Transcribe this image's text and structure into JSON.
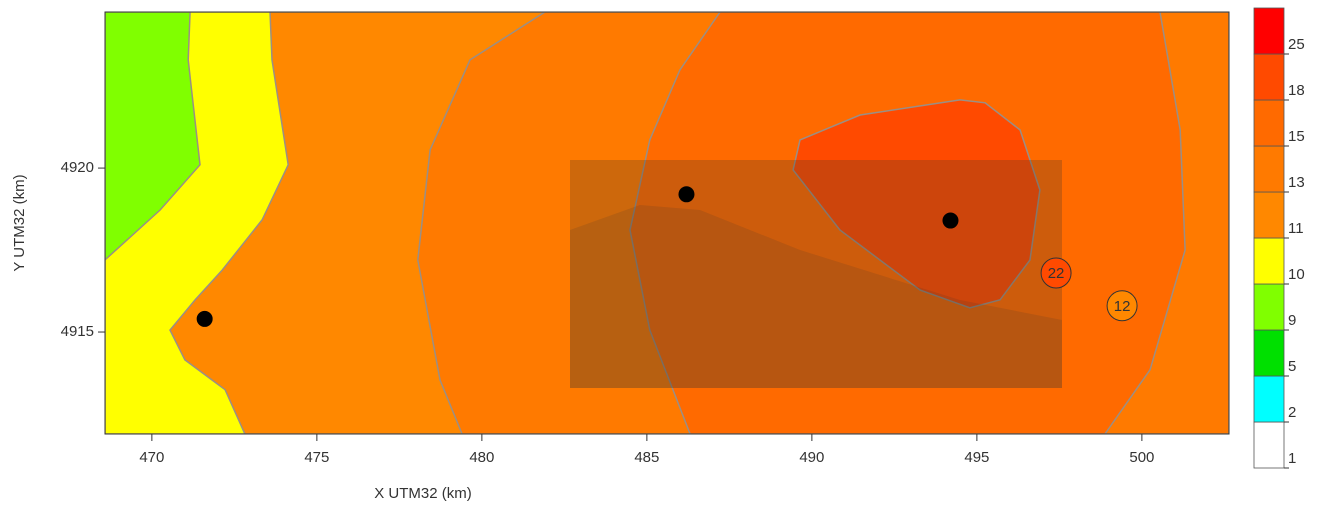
{
  "chart_data": {
    "type": "contour",
    "x_label": "X UTM32 (km)",
    "y_label": "Y UTM32 (km)",
    "xlim": [
      468.58,
      502.64
    ],
    "ylim": [
      4911.89,
      4924.76
    ],
    "xticks": [
      470,
      475,
      480,
      485,
      490,
      495,
      500
    ],
    "yticks": [
      4915,
      4920
    ],
    "colorbar": {
      "levels": [
        1,
        2,
        5,
        9,
        10,
        11,
        13,
        15,
        18,
        25
      ],
      "colors": [
        "#ffffff",
        "#00ffff",
        "#00e000",
        "#80ff00",
        "#ffff00",
        "#ff8800",
        "#ff7a00",
        "#ff6a00",
        "#ff4a00",
        "#ff0000"
      ]
    },
    "regions": [
      {
        "level": 11,
        "points": [
          [
            468.58,
            4924.76
          ],
          [
            502.64,
            4924.76
          ],
          [
            502.64,
            4911.89
          ],
          [
            468.58,
            4911.89
          ]
        ]
      },
      {
        "level": 13,
        "points": [
          [
            481.91,
            4924.76
          ],
          [
            479.64,
            4923.3
          ],
          [
            478.43,
            4920.55
          ],
          [
            478.06,
            4917.2
          ],
          [
            478.73,
            4913.54
          ],
          [
            479.4,
            4911.89
          ],
          [
            502.64,
            4911.89
          ],
          [
            502.64,
            4924.76
          ]
        ]
      },
      {
        "level": 15,
        "points": [
          [
            487.22,
            4924.76
          ],
          [
            486.0,
            4922.99
          ],
          [
            485.09,
            4920.86
          ],
          [
            484.49,
            4918.11
          ],
          [
            485.09,
            4915.06
          ],
          [
            486.31,
            4911.89
          ],
          [
            498.88,
            4911.89
          ],
          [
            500.25,
            4913.85
          ],
          [
            501.31,
            4917.5
          ],
          [
            501.16,
            4921.16
          ],
          [
            500.55,
            4924.76
          ]
        ]
      },
      {
        "level": 18,
        "points": [
          [
            489.64,
            4920.86
          ],
          [
            491.46,
            4921.62
          ],
          [
            494.49,
            4922.08
          ],
          [
            495.25,
            4921.99
          ],
          [
            496.31,
            4921.16
          ],
          [
            496.91,
            4919.33
          ],
          [
            496.61,
            4917.2
          ],
          [
            495.7,
            4915.98
          ],
          [
            494.79,
            4915.74
          ],
          [
            493.28,
            4916.28
          ],
          [
            490.85,
            4918.11
          ],
          [
            489.43,
            4919.94
          ]
        ]
      },
      {
        "level": 10,
        "points": [
          [
            471.16,
            4924.76
          ],
          [
            473.58,
            4924.76
          ],
          [
            473.64,
            4923.3
          ],
          [
            474.13,
            4920.1
          ],
          [
            473.34,
            4918.42
          ],
          [
            472.13,
            4916.89
          ],
          [
            471.31,
            4915.98
          ],
          [
            470.55,
            4915.06
          ],
          [
            471.0,
            4914.15
          ],
          [
            472.22,
            4913.24
          ],
          [
            472.82,
            4911.89
          ],
          [
            468.58,
            4911.89
          ],
          [
            468.58,
            4924.76
          ]
        ]
      },
      {
        "level": 9,
        "points": [
          [
            468.58,
            4924.76
          ],
          [
            471.16,
            4924.76
          ],
          [
            471.1,
            4923.3
          ],
          [
            471.46,
            4920.1
          ],
          [
            470.25,
            4918.72
          ],
          [
            468.58,
            4917.2
          ]
        ]
      }
    ],
    "sources": [
      [
        471.6,
        4915.4
      ],
      [
        486.2,
        4919.2
      ],
      [
        494.2,
        4918.4
      ]
    ],
    "receptors": [
      {
        "x": 497.4,
        "y": 4916.8,
        "value": 22
      },
      {
        "x": 499.4,
        "y": 4915.8,
        "value": 12
      }
    ]
  }
}
